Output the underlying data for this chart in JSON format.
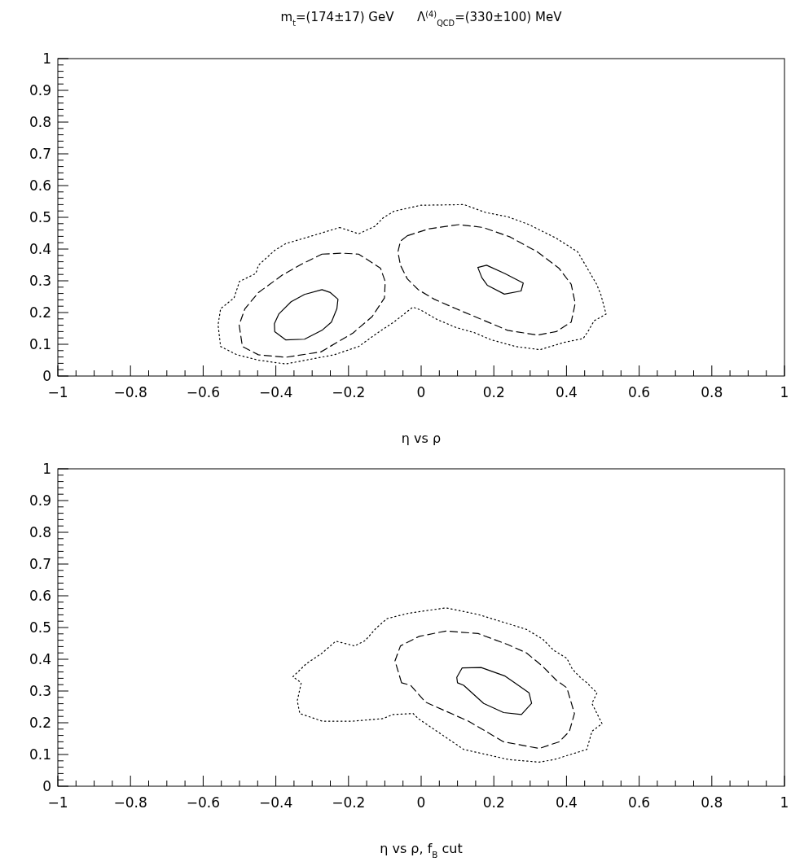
{
  "chart_data": [
    {
      "type": "line",
      "title": "m$_{t}$=(174±17) GeV      Λ$^{(4)}$$_{QCD}$=(330±100) MeV",
      "xlabel": "η vs ρ",
      "xlim": [
        -1,
        1
      ],
      "ylim": [
        0,
        1
      ],
      "xticks": [
        -1,
        {
          "value": -0.95,
          "label": null
        },
        {
          "value": -0.9,
          "label": null
        },
        {
          "value": -0.85,
          "label": null
        },
        -0.8,
        {
          "value": -0.75,
          "label": null
        },
        {
          "value": -0.7,
          "label": null
        },
        {
          "value": -0.65,
          "label": null
        },
        -0.6,
        {
          "value": -0.55,
          "label": null
        },
        {
          "value": -0.5,
          "label": null
        },
        {
          "value": -0.45,
          "label": null
        },
        -0.4,
        {
          "value": -0.35,
          "label": null
        },
        {
          "value": -0.3,
          "label": null
        },
        {
          "value": -0.25,
          "label": null
        },
        -0.2,
        {
          "value": -0.15,
          "label": null
        },
        {
          "value": -0.1,
          "label": null
        },
        {
          "value": -0.05,
          "label": null
        },
        0,
        {
          "value": 0.05,
          "label": null
        },
        {
          "value": 0.1,
          "label": null
        },
        {
          "value": 0.15,
          "label": null
        },
        0.2,
        {
          "value": 0.25,
          "label": null
        },
        {
          "value": 0.3,
          "label": null
        },
        {
          "value": 0.35,
          "label": null
        },
        0.4,
        {
          "value": 0.45,
          "label": null
        },
        {
          "value": 0.5,
          "label": null
        },
        {
          "value": 0.55,
          "label": null
        },
        0.6,
        {
          "value": 0.65,
          "label": null
        },
        {
          "value": 0.7,
          "label": null
        },
        {
          "value": 0.75,
          "label": null
        },
        0.8,
        {
          "value": 0.85,
          "label": null
        },
        {
          "value": 0.9,
          "label": null
        },
        {
          "value": 0.95,
          "label": null
        },
        1
      ],
      "yticks": [
        0,
        {
          "value": 0.02,
          "label": null
        },
        {
          "value": 0.04,
          "label": null
        },
        {
          "value": 0.06,
          "label": null
        },
        {
          "value": 0.08,
          "label": null
        },
        0.1,
        {
          "value": 0.12,
          "label": null
        },
        {
          "value": 0.14,
          "label": null
        },
        {
          "value": 0.16,
          "label": null
        },
        {
          "value": 0.18,
          "label": null
        },
        0.2,
        {
          "value": 0.22,
          "label": null
        },
        {
          "value": 0.24,
          "label": null
        },
        {
          "value": 0.26,
          "label": null
        },
        {
          "value": 0.28,
          "label": null
        },
        0.3,
        {
          "value": 0.32,
          "label": null
        },
        {
          "value": 0.34,
          "label": null
        },
        {
          "value": 0.36,
          "label": null
        },
        {
          "value": 0.38,
          "label": null
        },
        0.4,
        {
          "value": 0.42,
          "label": null
        },
        {
          "value": 0.44,
          "label": null
        },
        {
          "value": 0.46,
          "label": null
        },
        {
          "value": 0.48,
          "label": null
        },
        0.5,
        {
          "value": 0.52,
          "label": null
        },
        {
          "value": 0.54,
          "label": null
        },
        {
          "value": 0.56,
          "label": null
        },
        {
          "value": 0.58,
          "label": null
        },
        0.6,
        {
          "value": 0.62,
          "label": null
        },
        {
          "value": 0.64,
          "label": null
        },
        {
          "value": 0.66,
          "label": null
        },
        {
          "value": 0.68,
          "label": null
        },
        0.7,
        {
          "value": 0.72,
          "label": null
        },
        {
          "value": 0.74,
          "label": null
        },
        {
          "value": 0.76,
          "label": null
        },
        {
          "value": 0.78,
          "label": null
        },
        0.8,
        {
          "value": 0.82,
          "label": null
        },
        {
          "value": 0.84,
          "label": null
        },
        {
          "value": 0.86,
          "label": null
        },
        {
          "value": 0.88,
          "label": null
        },
        0.9,
        {
          "value": 0.92,
          "label": null
        },
        {
          "value": 0.94,
          "label": null
        },
        {
          "value": 0.96,
          "label": null
        },
        {
          "value": 0.98,
          "label": null
        },
        1
      ],
      "grid": false
    },
    {
      "type": "line",
      "xlabel": "η vs ρ, f$_{B}$ cut",
      "xlim": [
        -1,
        1
      ],
      "ylim": [
        0,
        1
      ],
      "xticks": [
        -1,
        {
          "value": -0.95,
          "label": null
        },
        {
          "value": -0.9,
          "label": null
        },
        {
          "value": -0.85,
          "label": null
        },
        -0.8,
        {
          "value": -0.75,
          "label": null
        },
        {
          "value": -0.7,
          "label": null
        },
        {
          "value": -0.65,
          "label": null
        },
        -0.6,
        {
          "value": -0.55,
          "label": null
        },
        {
          "value": -0.5,
          "label": null
        },
        {
          "value": -0.45,
          "label": null
        },
        -0.4,
        {
          "value": -0.35,
          "label": null
        },
        {
          "value": -0.3,
          "label": null
        },
        {
          "value": -0.25,
          "label": null
        },
        -0.2,
        {
          "value": -0.15,
          "label": null
        },
        {
          "value": -0.1,
          "label": null
        },
        {
          "value": -0.05,
          "label": null
        },
        0,
        {
          "value": 0.05,
          "label": null
        },
        {
          "value": 0.1,
          "label": null
        },
        {
          "value": 0.15,
          "label": null
        },
        0.2,
        {
          "value": 0.25,
          "label": null
        },
        {
          "value": 0.3,
          "label": null
        },
        {
          "value": 0.35,
          "label": null
        },
        0.4,
        {
          "value": 0.45,
          "label": null
        },
        {
          "value": 0.5,
          "label": null
        },
        {
          "value": 0.55,
          "label": null
        },
        0.6,
        {
          "value": 0.65,
          "label": null
        },
        {
          "value": 0.7,
          "label": null
        },
        {
          "value": 0.75,
          "label": null
        },
        0.8,
        {
          "value": 0.85,
          "label": null
        },
        {
          "value": 0.9,
          "label": null
        },
        {
          "value": 0.95,
          "label": null
        },
        1
      ],
      "yticks": [
        0,
        {
          "value": 0.02,
          "label": null
        },
        {
          "value": 0.04,
          "label": null
        },
        {
          "value": 0.06,
          "label": null
        },
        {
          "value": 0.08,
          "label": null
        },
        0.1,
        {
          "value": 0.12,
          "label": null
        },
        {
          "value": 0.14,
          "label": null
        },
        {
          "value": 0.16,
          "label": null
        },
        {
          "value": 0.18,
          "label": null
        },
        0.2,
        {
          "value": 0.22,
          "label": null
        },
        {
          "value": 0.24,
          "label": null
        },
        {
          "value": 0.26,
          "label": null
        },
        {
          "value": 0.28,
          "label": null
        },
        0.3,
        {
          "value": 0.32,
          "label": null
        },
        {
          "value": 0.34,
          "label": null
        },
        {
          "value": 0.36,
          "label": null
        },
        {
          "value": 0.38,
          "label": null
        },
        0.4,
        {
          "value": 0.42,
          "label": null
        },
        {
          "value": 0.44,
          "label": null
        },
        {
          "value": 0.46,
          "label": null
        },
        {
          "value": 0.48,
          "label": null
        },
        0.5,
        {
          "value": 0.52,
          "label": null
        },
        {
          "value": 0.54,
          "label": null
        },
        {
          "value": 0.56,
          "label": null
        },
        {
          "value": 0.58,
          "label": null
        },
        0.6,
        {
          "value": 0.62,
          "label": null
        },
        {
          "value": 0.64,
          "label": null
        },
        {
          "value": 0.66,
          "label": null
        },
        {
          "value": 0.68,
          "label": null
        },
        0.7,
        {
          "value": 0.72,
          "label": null
        },
        {
          "value": 0.74,
          "label": null
        },
        {
          "value": 0.76,
          "label": null
        },
        {
          "value": 0.78,
          "label": null
        },
        0.8,
        {
          "value": 0.82,
          "label": null
        },
        {
          "value": 0.84,
          "label": null
        },
        {
          "value": 0.86,
          "label": null
        },
        {
          "value": 0.88,
          "label": null
        },
        0.9,
        {
          "value": 0.92,
          "label": null
        },
        {
          "value": 0.94,
          "label": null
        },
        {
          "value": 0.96,
          "label": null
        },
        {
          "value": 0.98,
          "label": null
        },
        1
      ],
      "grid": false
    }
  ]
}
